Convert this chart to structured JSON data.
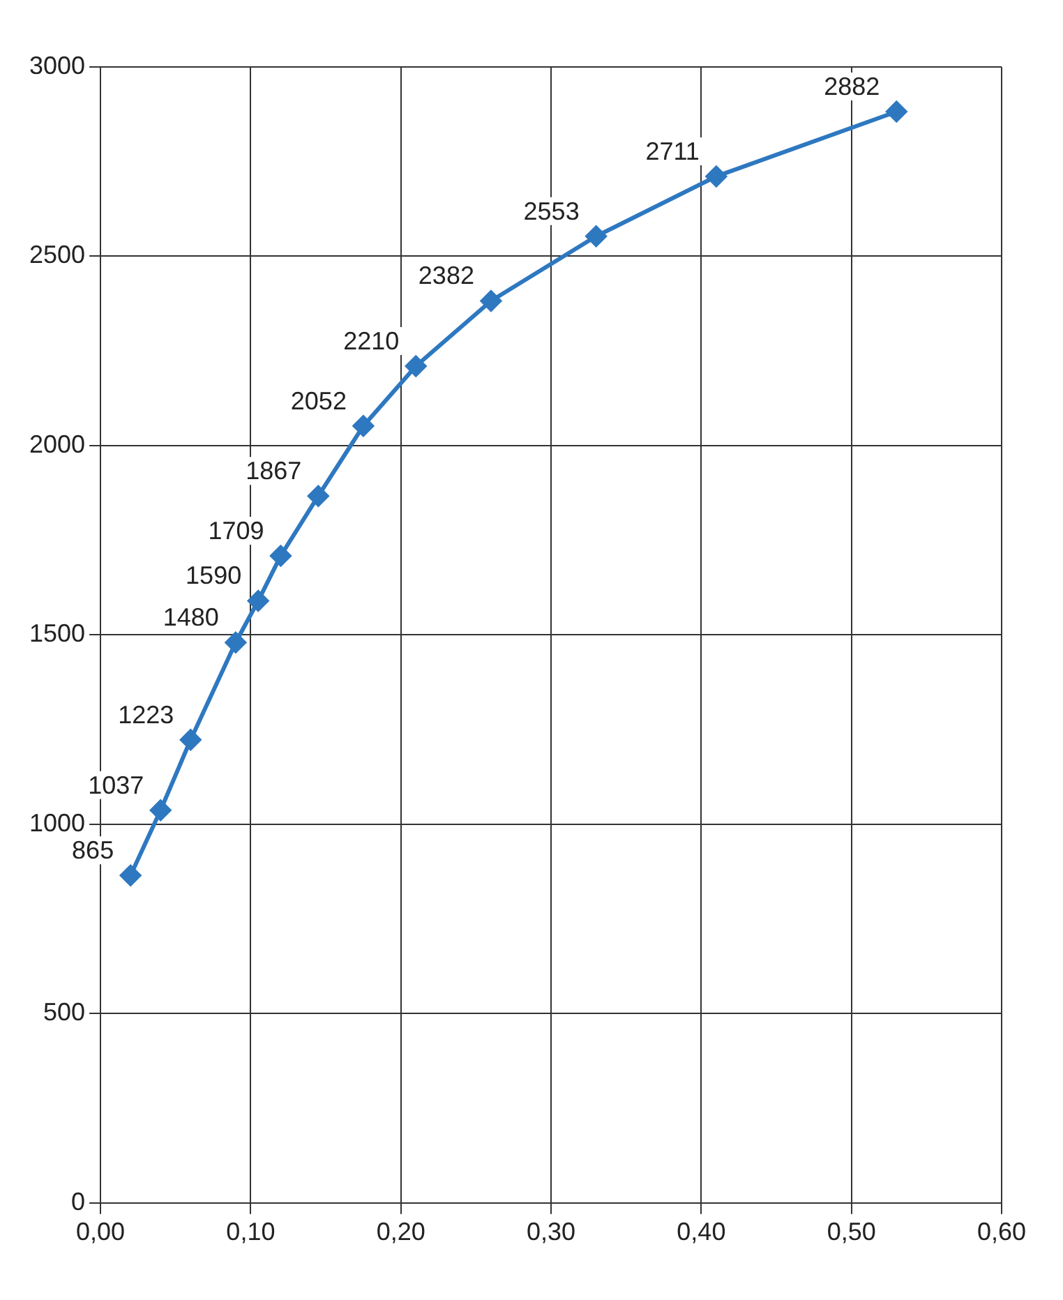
{
  "chart_data": {
    "type": "line",
    "x": [
      0.02,
      0.04,
      0.06,
      0.09,
      0.105,
      0.12,
      0.145,
      0.175,
      0.21,
      0.26,
      0.33,
      0.41,
      0.53
    ],
    "series": [
      {
        "color": "#2e78c0",
        "values": [
          865,
          1037,
          1223,
          1480,
          1590,
          1709,
          1867,
          2052,
          2210,
          2382,
          2553,
          2711,
          2882
        ]
      }
    ],
    "xlim": [
      0,
      0.6
    ],
    "xticks": [
      {
        "value": 0,
        "label": "0,00"
      },
      {
        "value": 0.1,
        "label": "0,10"
      },
      {
        "value": 0.2,
        "label": "0,20"
      },
      {
        "value": 0.3,
        "label": "0,30"
      },
      {
        "value": 0.4,
        "label": "0,40"
      },
      {
        "value": 0.5,
        "label": "0,50"
      },
      {
        "value": 0.6,
        "label": "0,60"
      }
    ],
    "ylim": [
      0,
      3000
    ],
    "yticks": [
      0,
      500,
      1000,
      1500,
      2000,
      2500,
      3000
    ],
    "grid": true,
    "legend": false,
    "marker": "diamond",
    "line_style": "solid",
    "data_labels": true
  }
}
